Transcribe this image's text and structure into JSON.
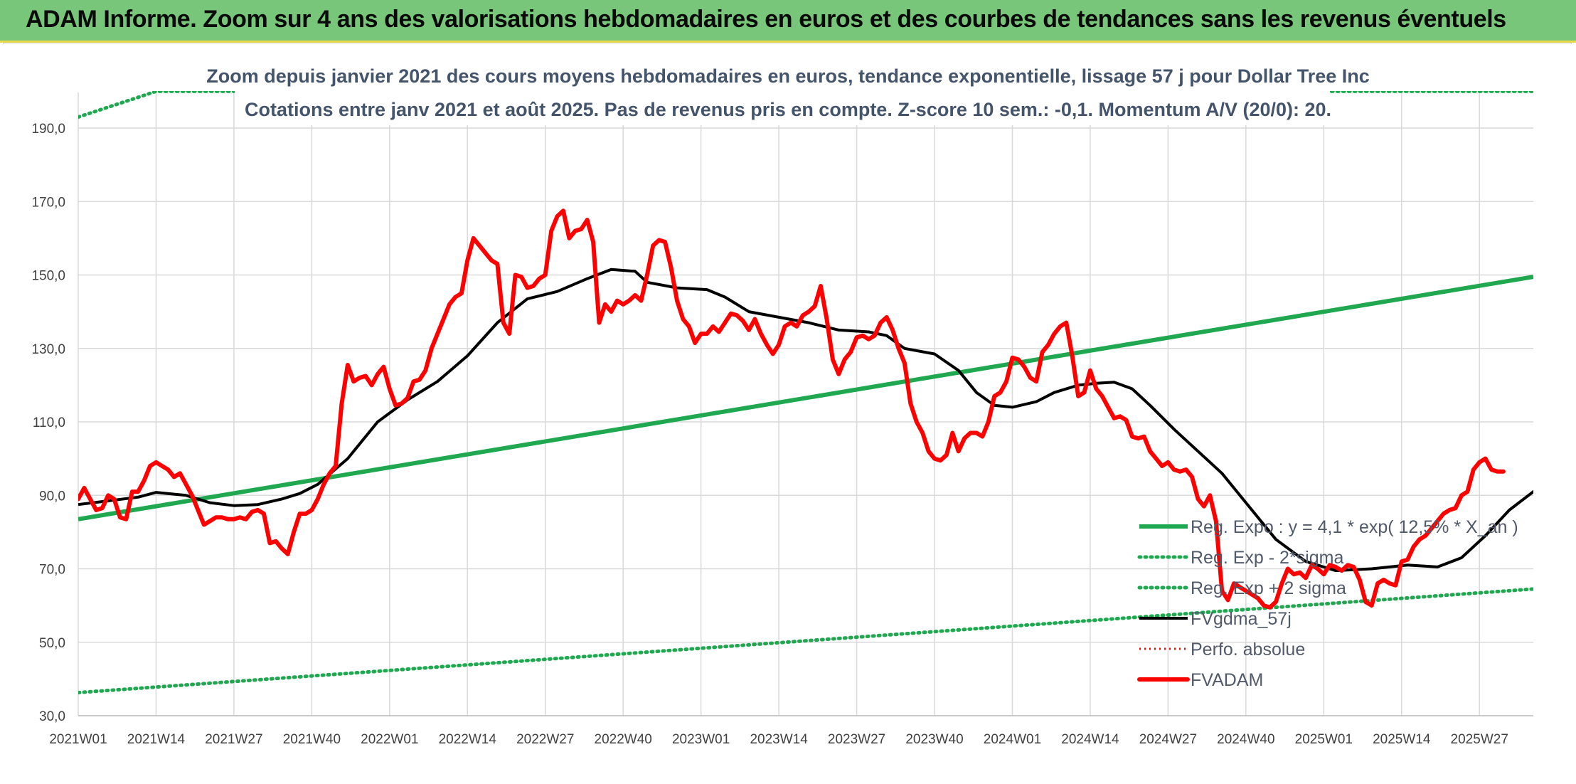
{
  "header": {
    "title": "ADAM Informe. Zoom sur 4 ans des valorisations hebdomadaires en euros et des courbes de tendances sans les revenus éventuels"
  },
  "chart_data": {
    "type": "line",
    "title": "Zoom depuis janvier 2021 des cours moyens hebdomadaires en euros, tendance exponentielle, lissage 57 j pour Dollar Tree Inc",
    "subtitle": "Cotations entre janv 2021 et août 2025. Pas de revenus pris en compte. Z-score 10 sem.: -0,1. Momentum A/V (20/0): 20.",
    "xlabel": "",
    "ylabel": "",
    "ylim": [
      30,
      190
    ],
    "yticks": [
      "30,0",
      "50,0",
      "70,0",
      "90,0",
      "110,0",
      "130,0",
      "150,0",
      "170,0",
      "190,0"
    ],
    "xticks": [
      "2021W01",
      "2021W14",
      "2021W27",
      "2021W40",
      "2022W01",
      "2022W14",
      "2022W27",
      "2022W40",
      "2023W01",
      "2023W14",
      "2023W27",
      "2023W40",
      "2024W01",
      "2024W14",
      "2024W27",
      "2024W40",
      "2025W01",
      "2025W14",
      "2025W27"
    ],
    "x_range_weeks": [
      0,
      243
    ],
    "grid": true,
    "legend_position": "bottom-right",
    "colors": {
      "green": "#1fa84f",
      "black": "#000000",
      "red": "#ff0000",
      "grid": "#d9d9d9"
    },
    "series": [
      {
        "name": "Reg. Expo : y = 4,1 * exp( 12,5% * X_an )",
        "style": "solid-green",
        "points": [
          [
            0,
            83.5
          ],
          [
            243,
            149.5
          ]
        ]
      },
      {
        "name": "Reg. Exp - 2*sigma",
        "style": "dotted-green",
        "points": [
          [
            0,
            36.3
          ],
          [
            243,
            64.5
          ]
        ]
      },
      {
        "name": "Reg. Exp + 2 sigma",
        "style": "dotted-green",
        "points": [
          [
            0,
            193
          ],
          [
            13,
            200
          ],
          [
            243,
            200
          ]
        ]
      },
      {
        "name": "FVgdma_57j",
        "style": "solid-black",
        "points": [
          [
            0,
            87.5
          ],
          [
            5,
            88.5
          ],
          [
            10,
            89.5
          ],
          [
            13,
            90.8
          ],
          [
            18,
            90
          ],
          [
            22,
            88
          ],
          [
            26,
            87.2
          ],
          [
            30,
            87.5
          ],
          [
            34,
            89
          ],
          [
            37,
            90.5
          ],
          [
            40,
            93
          ],
          [
            45,
            100
          ],
          [
            50,
            110
          ],
          [
            55,
            116
          ],
          [
            60,
            121
          ],
          [
            65,
            128
          ],
          [
            70,
            137
          ],
          [
            75,
            143.5
          ],
          [
            80,
            145.5
          ],
          [
            85,
            149
          ],
          [
            89,
            151.5
          ],
          [
            93,
            151
          ],
          [
            95,
            148
          ],
          [
            100,
            146.5
          ],
          [
            105,
            146
          ],
          [
            108,
            144
          ],
          [
            112,
            140
          ],
          [
            117,
            138.5
          ],
          [
            122,
            137
          ],
          [
            127,
            135
          ],
          [
            132,
            134.5
          ],
          [
            135,
            133.5
          ],
          [
            138,
            130
          ],
          [
            143,
            128.5
          ],
          [
            147,
            124
          ],
          [
            150,
            118
          ],
          [
            153,
            114.5
          ],
          [
            156,
            114
          ],
          [
            160,
            115.5
          ],
          [
            163,
            118
          ],
          [
            167,
            120
          ],
          [
            170,
            120.5
          ],
          [
            173,
            120.8
          ],
          [
            176,
            119
          ],
          [
            179,
            114.5
          ],
          [
            183,
            108
          ],
          [
            187,
            102
          ],
          [
            191,
            96
          ],
          [
            195,
            88
          ],
          [
            200,
            78
          ],
          [
            205,
            72
          ],
          [
            210,
            69.5
          ],
          [
            216,
            70
          ],
          [
            222,
            71
          ],
          [
            227,
            70.5
          ],
          [
            231,
            73
          ],
          [
            235,
            79
          ],
          [
            239,
            86
          ],
          [
            243,
            91
          ],
          [
            248,
            93.2
          ]
        ]
      },
      {
        "name": "Perfo. absolue",
        "style": "dotted-red",
        "points": []
      },
      {
        "name": "FVADAM",
        "style": "solid-red-thick",
        "points": [
          [
            0,
            89
          ],
          [
            1,
            92
          ],
          [
            2,
            89
          ],
          [
            3,
            86
          ],
          [
            4,
            86.5
          ],
          [
            5,
            90
          ],
          [
            6,
            89
          ],
          [
            7,
            84
          ],
          [
            8,
            83.5
          ],
          [
            9,
            91
          ],
          [
            10,
            91
          ],
          [
            11,
            94
          ],
          [
            12,
            98
          ],
          [
            13,
            99
          ],
          [
            14,
            98
          ],
          [
            15,
            97
          ],
          [
            16,
            95
          ],
          [
            17,
            96
          ],
          [
            18,
            93
          ],
          [
            19,
            90
          ],
          [
            20,
            86
          ],
          [
            21,
            82
          ],
          [
            22,
            83
          ],
          [
            23,
            84
          ],
          [
            24,
            84
          ],
          [
            25,
            83.5
          ],
          [
            26,
            83.5
          ],
          [
            27,
            84
          ],
          [
            28,
            83.5
          ],
          [
            29,
            85.5
          ],
          [
            30,
            86
          ],
          [
            31,
            85
          ],
          [
            32,
            77
          ],
          [
            33,
            77.5
          ],
          [
            34,
            75.5
          ],
          [
            35,
            74
          ],
          [
            36,
            80
          ],
          [
            37,
            85
          ],
          [
            38,
            85
          ],
          [
            39,
            86
          ],
          [
            40,
            89
          ],
          [
            41,
            93
          ],
          [
            42,
            96
          ],
          [
            43,
            98
          ],
          [
            44,
            115
          ],
          [
            45,
            125.5
          ],
          [
            46,
            121
          ],
          [
            47,
            122
          ],
          [
            48,
            122.5
          ],
          [
            49,
            120
          ],
          [
            50,
            123
          ],
          [
            51,
            125
          ],
          [
            52,
            119
          ],
          [
            53,
            114.5
          ],
          [
            54,
            115
          ],
          [
            55,
            116.5
          ],
          [
            56,
            121
          ],
          [
            57,
            121.5
          ],
          [
            58,
            124
          ],
          [
            59,
            130
          ],
          [
            60,
            134
          ],
          [
            61,
            138
          ],
          [
            62,
            142
          ],
          [
            63,
            144
          ],
          [
            64,
            145
          ],
          [
            65,
            154
          ],
          [
            66,
            160
          ],
          [
            67,
            158
          ],
          [
            68,
            156
          ],
          [
            69,
            154
          ],
          [
            70,
            153
          ],
          [
            71,
            137
          ],
          [
            72,
            134
          ],
          [
            73,
            150
          ],
          [
            74,
            149.5
          ],
          [
            75,
            146.5
          ],
          [
            76,
            147
          ],
          [
            77,
            149
          ],
          [
            78,
            150
          ],
          [
            79,
            162
          ],
          [
            80,
            166
          ],
          [
            81,
            167.5
          ],
          [
            82,
            160
          ],
          [
            83,
            162
          ],
          [
            84,
            162.5
          ],
          [
            85,
            165
          ],
          [
            86,
            159
          ],
          [
            87,
            137
          ],
          [
            88,
            142
          ],
          [
            89,
            140
          ],
          [
            90,
            143
          ],
          [
            91,
            142
          ],
          [
            92,
            143
          ],
          [
            93,
            144.5
          ],
          [
            94,
            143
          ],
          [
            95,
            150
          ],
          [
            96,
            158
          ],
          [
            97,
            159.5
          ],
          [
            98,
            159
          ],
          [
            99,
            152
          ],
          [
            100,
            143
          ],
          [
            101,
            138
          ],
          [
            102,
            136
          ],
          [
            103,
            131.5
          ],
          [
            104,
            134
          ],
          [
            105,
            134
          ],
          [
            106,
            136
          ],
          [
            107,
            134.5
          ],
          [
            108,
            137
          ],
          [
            109,
            139.5
          ],
          [
            110,
            139
          ],
          [
            111,
            137.5
          ],
          [
            112,
            135
          ],
          [
            113,
            138
          ],
          [
            114,
            134
          ],
          [
            115,
            131
          ],
          [
            116,
            128.5
          ],
          [
            117,
            131
          ],
          [
            118,
            136
          ],
          [
            119,
            137
          ],
          [
            120,
            136
          ],
          [
            121,
            139
          ],
          [
            122,
            140
          ],
          [
            123,
            141.5
          ],
          [
            124,
            147
          ],
          [
            125,
            138
          ],
          [
            126,
            127
          ],
          [
            127,
            123
          ],
          [
            128,
            127
          ],
          [
            129,
            129
          ],
          [
            130,
            133
          ],
          [
            131,
            133.5
          ],
          [
            132,
            132.5
          ],
          [
            133,
            133.5
          ],
          [
            134,
            137
          ],
          [
            135,
            138.5
          ],
          [
            136,
            135
          ],
          [
            137,
            130
          ],
          [
            138,
            126
          ],
          [
            139,
            115
          ],
          [
            140,
            110
          ],
          [
            141,
            107
          ],
          [
            142,
            102
          ],
          [
            143,
            100
          ],
          [
            144,
            99.5
          ],
          [
            145,
            101
          ],
          [
            146,
            107
          ],
          [
            147,
            102
          ],
          [
            148,
            105.5
          ],
          [
            149,
            107
          ],
          [
            150,
            107
          ],
          [
            151,
            106
          ],
          [
            152,
            110
          ],
          [
            153,
            117
          ],
          [
            154,
            118
          ],
          [
            155,
            121
          ],
          [
            156,
            127.5
          ],
          [
            157,
            127
          ],
          [
            158,
            125
          ],
          [
            159,
            122
          ],
          [
            160,
            121
          ],
          [
            161,
            129
          ],
          [
            162,
            131
          ],
          [
            163,
            134
          ],
          [
            164,
            136
          ],
          [
            165,
            137
          ],
          [
            166,
            128
          ],
          [
            167,
            117
          ],
          [
            168,
            118
          ],
          [
            169,
            124
          ],
          [
            170,
            119
          ],
          [
            171,
            117
          ],
          [
            172,
            114
          ],
          [
            173,
            111
          ],
          [
            174,
            111.5
          ],
          [
            175,
            110.5
          ],
          [
            176,
            106
          ],
          [
            177,
            105.5
          ],
          [
            178,
            106
          ],
          [
            179,
            102
          ],
          [
            180,
            100
          ],
          [
            181,
            98
          ],
          [
            182,
            99
          ],
          [
            183,
            97
          ],
          [
            184,
            96.5
          ],
          [
            185,
            97
          ],
          [
            186,
            95
          ],
          [
            187,
            89
          ],
          [
            188,
            87
          ],
          [
            189,
            90
          ],
          [
            190,
            83
          ],
          [
            191,
            64
          ],
          [
            192,
            61.5
          ],
          [
            193,
            66
          ],
          [
            194,
            65
          ],
          [
            195,
            64
          ],
          [
            196,
            63
          ],
          [
            197,
            62
          ],
          [
            198,
            60
          ],
          [
            199,
            59.5
          ],
          [
            200,
            61
          ],
          [
            201,
            66
          ],
          [
            202,
            70
          ],
          [
            203,
            68.5
          ],
          [
            204,
            69
          ],
          [
            205,
            67.5
          ],
          [
            206,
            71
          ],
          [
            207,
            70
          ],
          [
            208,
            68.5
          ],
          [
            209,
            71
          ],
          [
            210,
            70.5
          ],
          [
            211,
            69.5
          ],
          [
            212,
            71
          ],
          [
            213,
            70.5
          ],
          [
            214,
            67
          ],
          [
            215,
            61
          ],
          [
            216,
            60
          ],
          [
            217,
            66
          ],
          [
            218,
            67
          ],
          [
            219,
            66
          ],
          [
            220,
            65.5
          ],
          [
            221,
            72
          ],
          [
            222,
            72.5
          ],
          [
            223,
            76
          ],
          [
            224,
            78
          ],
          [
            225,
            79
          ],
          [
            226,
            81
          ],
          [
            227,
            83
          ],
          [
            228,
            85
          ],
          [
            229,
            86
          ],
          [
            230,
            86.5
          ],
          [
            231,
            90
          ],
          [
            232,
            91
          ],
          [
            233,
            97
          ],
          [
            234,
            99
          ],
          [
            235,
            100
          ],
          [
            236,
            97
          ],
          [
            237,
            96.5
          ],
          [
            238,
            96.5
          ]
        ]
      }
    ]
  }
}
